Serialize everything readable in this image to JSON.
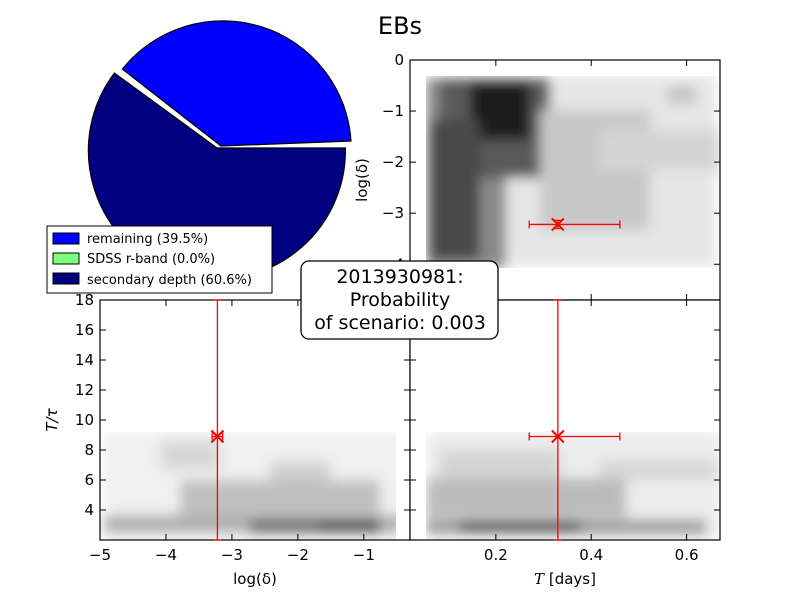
{
  "title": "EBs",
  "annotation": {
    "line1": "2013930981:",
    "line2": "Probability",
    "line3": "of scenario: 0.003"
  },
  "pie": {
    "legend": [
      {
        "label": "remaining (39.5%)",
        "color": "#0000ff"
      },
      {
        "label": "SDSS r-band (0.0%)",
        "color": "#7fff7f"
      },
      {
        "label": "secondary depth (60.6%)",
        "color": "#000080"
      }
    ]
  },
  "panels": {
    "top_right": {
      "ylabel": "log(δ)"
    },
    "bottom_left": {
      "xlabel": "log(δ)",
      "ylabel": "T/τ"
    },
    "bottom_right": {
      "xlabel_unit": "[days]"
    }
  },
  "chart_data": [
    {
      "type": "pie",
      "slices": [
        {
          "label": "remaining",
          "value": 39.5,
          "color": "#0000ff",
          "exploded": true
        },
        {
          "label": "SDSS r-band",
          "value": 0.0,
          "color": "#7fff7f"
        },
        {
          "label": "secondary depth",
          "value": 60.6,
          "color": "#000080"
        }
      ],
      "legend_position": "lower-left"
    },
    {
      "type": "heatmap",
      "panel": "top_right",
      "xlim": [
        0.02,
        0.67
      ],
      "ylim": [
        -4.7,
        0
      ],
      "yticks": [
        0,
        -1,
        -2,
        -3,
        -4
      ],
      "ylabel": "log(δ)",
      "marker": {
        "x": 0.33,
        "y": -3.22,
        "xerr": [
          0.06,
          0.13
        ],
        "yerr": [
          0.08,
          0.08
        ],
        "color": "#ff0000"
      }
    },
    {
      "type": "heatmap",
      "panel": "bottom_left",
      "xlim": [
        -5,
        -0.3
      ],
      "ylim": [
        2,
        18
      ],
      "xticks": [
        -5,
        -4,
        -3,
        -2,
        -1
      ],
      "yticks": [
        4,
        6,
        8,
        10,
        12,
        14,
        16,
        18
      ],
      "xlabel": "log(δ)",
      "ylabel": "T/τ",
      "marker": {
        "x": -3.22,
        "y": 8.9,
        "xerr": [
          0.08,
          0.08
        ],
        "yerr": [
          6.9,
          9.1
        ],
        "color": "#ff0000"
      }
    },
    {
      "type": "heatmap",
      "panel": "bottom_right",
      "xlim": [
        0.02,
        0.67
      ],
      "ylim": [
        2,
        18
      ],
      "xticks": [
        0.2,
        0.4,
        0.6
      ],
      "xlabel": "T [days]",
      "marker": {
        "x": 0.33,
        "y": 8.9,
        "xerr": [
          0.06,
          0.13
        ],
        "yerr": [
          6.9,
          9.1
        ],
        "color": "#ff0000"
      }
    }
  ]
}
